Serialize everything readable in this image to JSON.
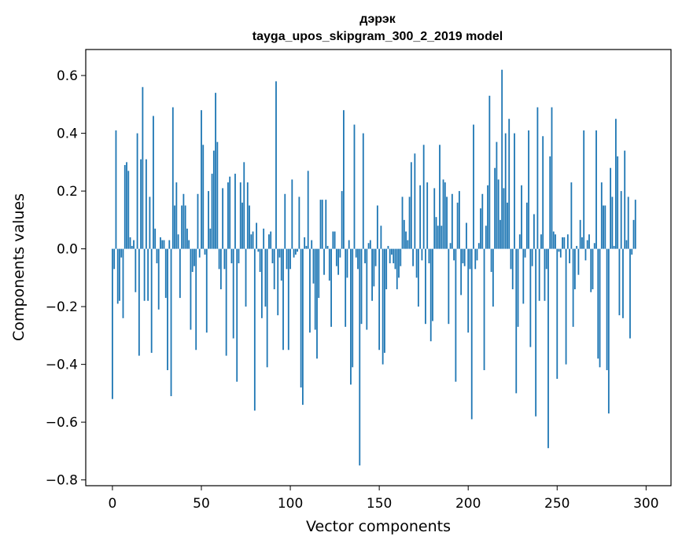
{
  "chart_data": {
    "type": "bar",
    "title": "дэрэк",
    "subtitle": "tayga_upos_skipgram_300_2_2019 model",
    "xlabel": "Vector components",
    "ylabel": "Components values",
    "xlim": [
      -15,
      314
    ],
    "ylim": [
      -0.82,
      0.69
    ],
    "xticks": [
      0,
      50,
      100,
      150,
      200,
      250,
      300
    ],
    "yticks": [
      -0.8,
      -0.6,
      -0.4,
      -0.2,
      0.0,
      0.2,
      0.4,
      0.6
    ],
    "ytick_labels": [
      "−0.8",
      "−0.6",
      "−0.4",
      "−0.2",
      "0.0",
      "0.2",
      "0.4",
      "0.6"
    ],
    "bar_color": "#1f77b4",
    "values": [
      -0.52,
      -0.07,
      0.41,
      -0.19,
      -0.18,
      -0.03,
      -0.24,
      0.29,
      0.3,
      0.27,
      0.04,
      0.01,
      0.03,
      -0.15,
      0.4,
      -0.37,
      0.31,
      0.56,
      -0.18,
      0.31,
      -0.18,
      0.18,
      -0.36,
      0.46,
      0.07,
      -0.05,
      -0.21,
      0.04,
      0.03,
      0.03,
      -0.17,
      -0.42,
      0.03,
      -0.51,
      0.49,
      0.15,
      0.23,
      0.05,
      -0.17,
      0.15,
      0.19,
      0.15,
      0.07,
      0.03,
      -0.28,
      -0.08,
      -0.06,
      -0.35,
      0.19,
      -0.03,
      0.48,
      0.36,
      -0.02,
      -0.29,
      0.2,
      0.07,
      0.26,
      0.34,
      0.54,
      0.37,
      -0.07,
      -0.14,
      0.21,
      -0.07,
      -0.37,
      0.23,
      0.25,
      -0.05,
      -0.31,
      0.26,
      -0.46,
      -0.05,
      0.23,
      0.16,
      0.3,
      -0.2,
      0.23,
      0.15,
      0.05,
      0.06,
      -0.56,
      0.09,
      -0.01,
      -0.08,
      -0.24,
      0.07,
      -0.2,
      -0.41,
      0.05,
      0.06,
      -0.05,
      -0.14,
      0.58,
      -0.23,
      -0.03,
      -0.11,
      -0.35,
      0.19,
      -0.07,
      -0.35,
      -0.07,
      0.24,
      -0.03,
      -0.02,
      -0.01,
      0.18,
      -0.48,
      -0.54,
      0.04,
      0.01,
      0.27,
      -0.29,
      0.03,
      -0.12,
      -0.28,
      -0.38,
      -0.17,
      0.17,
      0.17,
      -0.09,
      0.17,
      0.01,
      -0.11,
      -0.27,
      0.06,
      0.06,
      -0.06,
      -0.09,
      -0.03,
      0.2,
      0.48,
      -0.27,
      -0.1,
      0.03,
      -0.47,
      -0.41,
      0.43,
      -0.03,
      -0.07,
      -0.75,
      -0.26,
      0.4,
      -0.05,
      -0.28,
      0.02,
      0.03,
      -0.18,
      -0.13,
      -0.06,
      0.15,
      -0.35,
      0.08,
      -0.4,
      -0.36,
      -0.14,
      0.01,
      -0.05,
      -0.02,
      -0.05,
      -0.07,
      -0.14,
      -0.1,
      -0.06,
      0.18,
      0.1,
      0.06,
      0.03,
      0.18,
      0.3,
      -0.06,
      0.33,
      -0.1,
      -0.2,
      0.22,
      -0.04,
      0.36,
      -0.26,
      0.23,
      -0.05,
      -0.32,
      -0.25,
      0.21,
      0.11,
      0.08,
      0.36,
      0.08,
      0.24,
      0.23,
      0.18,
      -0.26,
      0.02,
      0.19,
      -0.04,
      -0.46,
      0.16,
      0.2,
      -0.16,
      -0.05,
      -0.06,
      0.09,
      -0.29,
      -0.07,
      -0.59,
      0.43,
      -0.07,
      -0.04,
      0.02,
      0.14,
      0.19,
      -0.42,
      0.08,
      0.22,
      0.53,
      -0.08,
      -0.2,
      0.28,
      0.37,
      0.24,
      0.1,
      0.62,
      0.21,
      0.4,
      0.16,
      0.45,
      -0.07,
      -0.14,
      0.4,
      -0.5,
      -0.27,
      0.05,
      0.22,
      -0.19,
      -0.03,
      0.16,
      0.41,
      -0.34,
      -0.06,
      0.12,
      -0.58,
      0.49,
      -0.18,
      0.05,
      0.39,
      -0.18,
      -0.07,
      -0.69,
      0.32,
      0.49,
      0.06,
      0.05,
      -0.45,
      -0.01,
      -0.03,
      0.04,
      0.04,
      -0.4,
      0.05,
      -0.05,
      0.23,
      -0.27,
      -0.14,
      0.01,
      -0.09,
      0.1,
      0.04,
      0.41,
      -0.04,
      0.03,
      0.05,
      -0.15,
      -0.14,
      0.02,
      0.41,
      -0.38,
      -0.41,
      0.23,
      0.15,
      0.15,
      -0.42,
      -0.57,
      0.28,
      0.18,
      0.01,
      0.45,
      0.32,
      -0.23,
      0.2,
      -0.24,
      0.34,
      0.03,
      0.18,
      -0.31,
      -0.02,
      0.1,
      0.17
    ]
  }
}
